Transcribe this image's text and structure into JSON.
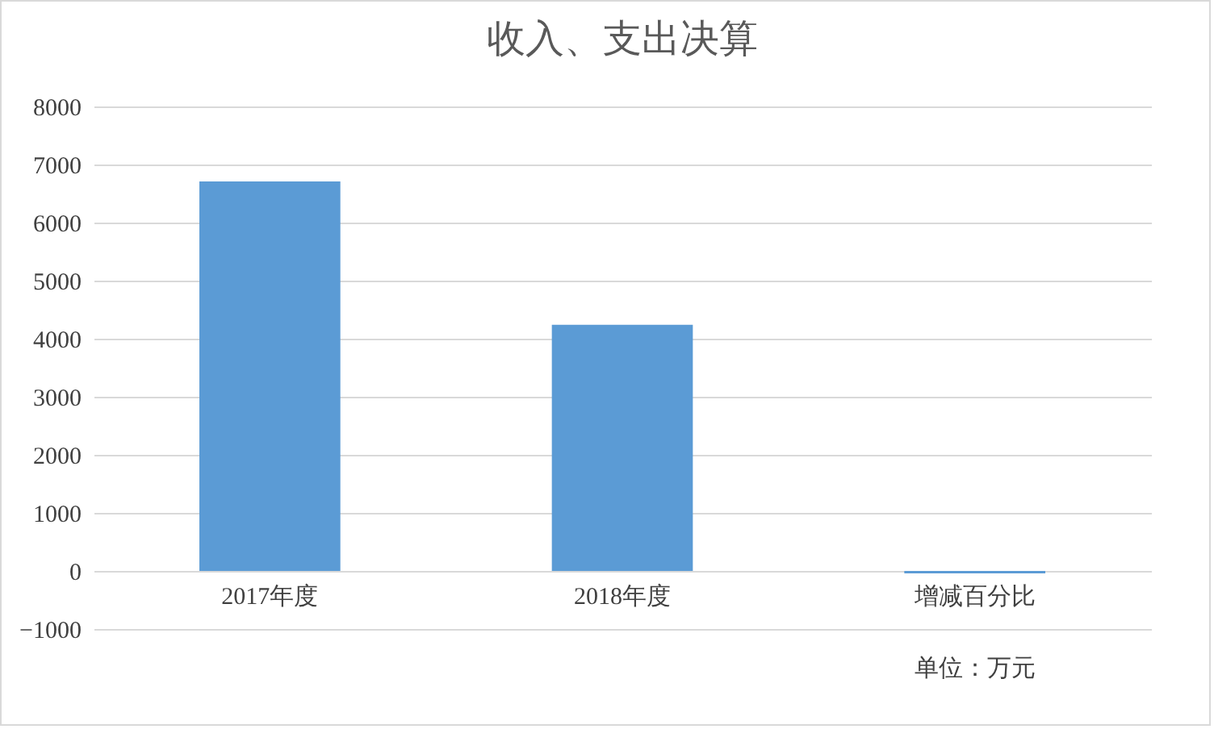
{
  "chart_data": {
    "type": "bar",
    "title": "收入、支出决算",
    "categories": [
      "2017年度",
      "2018年度",
      "增减百分比"
    ],
    "values": [
      6710,
      4240,
      -40
    ],
    "color": "#5b9bd5",
    "ylim": [
      -1000,
      8000
    ],
    "yticks": [
      -1000,
      0,
      1000,
      2000,
      3000,
      4000,
      5000,
      6000,
      7000,
      8000
    ],
    "grid": "y",
    "annotations": [
      "单位：万元"
    ]
  }
}
